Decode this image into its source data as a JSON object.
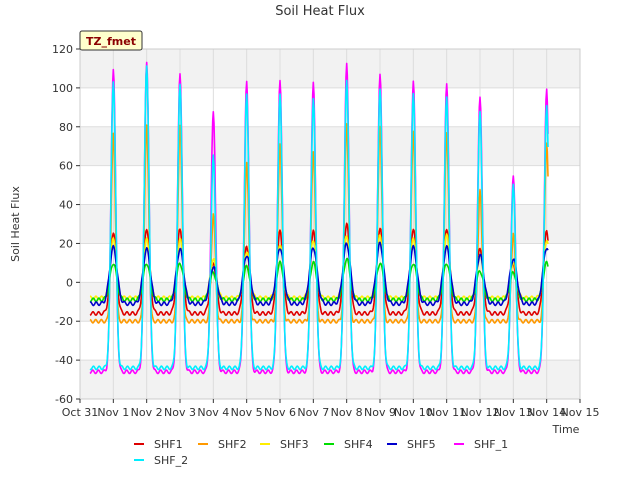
{
  "chart_data": {
    "type": "line",
    "title": "Soil Heat Flux",
    "xlabel": "Time",
    "ylabel": "Soil Heat Flux",
    "station_badge": "TZ_fmet",
    "ylim": [
      -60,
      120
    ],
    "yticks": [
      -60,
      -40,
      -20,
      0,
      20,
      40,
      60,
      80,
      100,
      120
    ],
    "xlim": [
      0,
      15
    ],
    "xtick_labels": [
      "Oct 31",
      "Nov 1",
      "Nov 2",
      "Nov 3",
      "Nov 4",
      "Nov 5",
      "Nov 6",
      "Nov 7",
      "Nov 8",
      "Nov 9",
      "Nov 10",
      "Nov 11",
      "Nov 12",
      "Nov 13",
      "Nov 14",
      "Nov 15"
    ],
    "x_range_days": [
      0.3,
      14.05
    ],
    "grid": true,
    "legend_position": "bottom",
    "series": [
      {
        "name": "SHF1",
        "color": "#dd0000",
        "base": -16,
        "peaks": [
          26,
          28,
          28,
          10,
          18,
          26,
          26,
          30,
          28,
          28,
          28,
          18,
          10,
          26
        ],
        "spread": 0.09
      },
      {
        "name": "SHF2",
        "color": "#ff9900",
        "base": -20,
        "peaks": [
          76,
          80,
          80,
          35,
          62,
          72,
          68,
          82,
          80,
          77,
          76,
          47,
          25,
          72
        ],
        "spread": 0.06
      },
      {
        "name": "SHF3",
        "color": "#ffee00",
        "base": -8,
        "peaks": [
          22,
          22,
          22,
          12,
          16,
          20,
          22,
          24,
          24,
          22,
          24,
          14,
          10,
          22
        ],
        "spread": 0.09
      },
      {
        "name": "SHF4",
        "color": "#00dd00",
        "base": -9,
        "peaks": [
          10,
          10,
          10,
          5,
          8,
          10,
          10,
          12,
          10,
          10,
          10,
          6,
          5,
          10
        ],
        "spread": 0.1
      },
      {
        "name": "SHF5",
        "color": "#0000cc",
        "base": -11,
        "peaks": [
          18,
          17,
          17,
          8,
          14,
          18,
          18,
          20,
          20,
          18,
          18,
          14,
          12,
          18
        ],
        "spread": 0.11
      },
      {
        "name": "SHF_1",
        "color": "#ff00ff",
        "base": -46,
        "peaks": [
          110,
          114,
          108,
          88,
          103,
          103,
          102,
          112,
          107,
          104,
          103,
          96,
          55,
          99
        ],
        "spread": 0.07
      },
      {
        "name": "SHF_2",
        "color": "#00eeff",
        "base": -44,
        "peaks": [
          104,
          112,
          102,
          65,
          96,
          96,
          94,
          104,
          100,
          98,
          96,
          88,
          50,
          90
        ],
        "spread": 0.07
      }
    ]
  }
}
